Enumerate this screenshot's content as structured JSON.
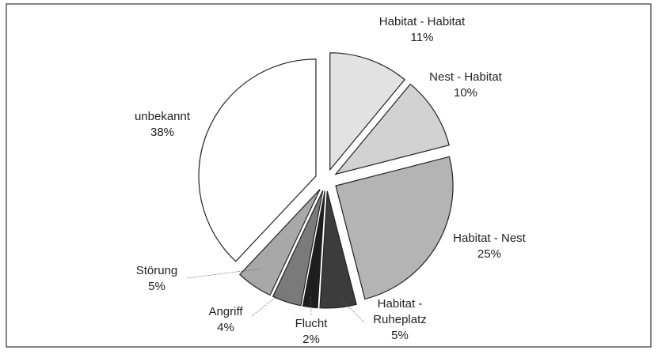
{
  "chart_data": {
    "type": "pie",
    "categories": [
      "Habitat - Habitat",
      "Nest - Habitat",
      "Habitat - Nest",
      "Habitat - Ruheplatz",
      "Flucht",
      "Angriff",
      "Störung",
      "unbekannt"
    ],
    "values": [
      11,
      10,
      25,
      5,
      2,
      4,
      5,
      38
    ],
    "value_labels": [
      "11%",
      "10%",
      "25%",
      "5%",
      "2%",
      "4%",
      "5%",
      "38%"
    ],
    "colors": [
      "#e2e2e2",
      "#d2d2d2",
      "#b4b4b4",
      "#3c3c3c",
      "#1e1e1e",
      "#7a7a7a",
      "#a8a8a8",
      "#ffffff"
    ]
  }
}
